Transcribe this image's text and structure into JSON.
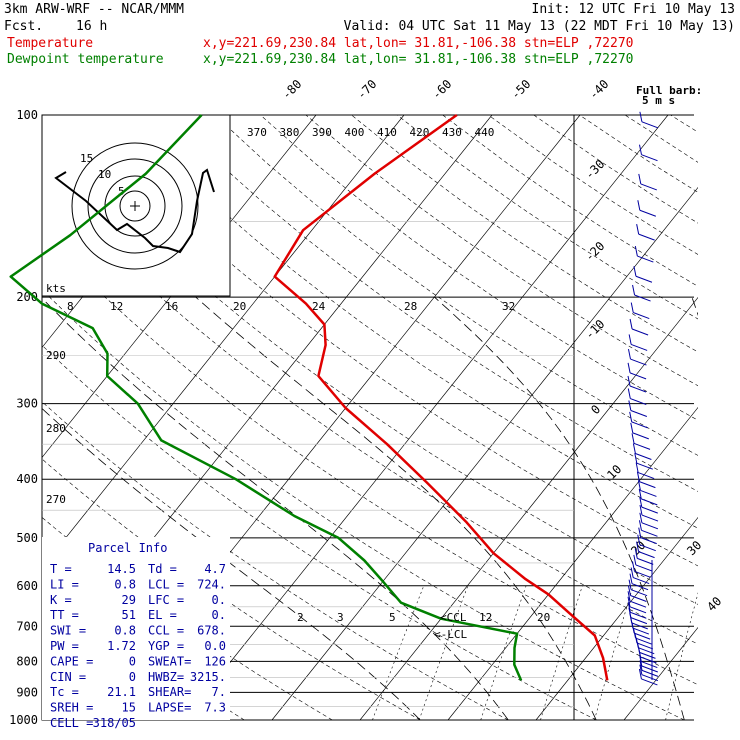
{
  "header": {
    "model": "3km ARW-WRF -- NCAR/MMM",
    "init": "Init: 12 UTC Fri 10 May 13",
    "fcst_label": "Fcst.",
    "fcst_value": "16 h",
    "valid": "Valid: 04 UTC Sat 11 May 13 (22 MDT Fri 10 May 13)"
  },
  "legend": [
    {
      "label": "Temperature",
      "info": "x,y=221.69,230.84   lat,lon= 31.81,-106.38  stn=ELP ,72270",
      "color": "#e00000"
    },
    {
      "label": "Dewpoint temperature",
      "info": "x,y=221.69,230.84   lat,lon= 31.81,-106.38  stn=ELP ,72270",
      "color": "#008000"
    }
  ],
  "barb_key": {
    "line1": "Full barb:",
    "line2": "5 m s"
  },
  "chart_data": {
    "type": "line",
    "title": "",
    "xlabel": "",
    "ylabel": "",
    "y_scale": "log-pressure (hPa, inverted)",
    "pressure_levels": [
      100,
      200,
      300,
      400,
      500,
      600,
      700,
      800,
      900,
      1000
    ],
    "isotherm_labels_top": [
      -80,
      -70,
      -60,
      -50,
      -40
    ],
    "isotherm_labels_right": [
      -30,
      -20,
      -10,
      0,
      10,
      20,
      30,
      40
    ],
    "theta_e_labels": [
      370,
      380,
      390,
      400,
      410,
      420,
      430,
      440
    ],
    "hodograph_speed_labels": [
      8,
      12,
      16,
      20,
      24,
      28,
      32
    ],
    "hodograph_units": "kts",
    "hodograph_rings": [
      "5",
      "10",
      "15"
    ],
    "dry_adiabat_labels": [
      290,
      280,
      270
    ],
    "mixing_ratio_labels": [
      2,
      3,
      5,
      12,
      20
    ],
    "ccl_label": "CCL",
    "lcl_label": "LCL",
    "series": [
      {
        "name": "Temperature",
        "color": "#e00000",
        "points": [
          [
            -54,
            100
          ],
          [
            -58,
            125
          ],
          [
            -61,
            155
          ],
          [
            -60,
            185
          ],
          [
            -54,
            205
          ],
          [
            -50,
            222
          ],
          [
            -48,
            240
          ],
          [
            -46,
            270
          ],
          [
            -40,
            305
          ],
          [
            -32,
            350
          ],
          [
            -24,
            405
          ],
          [
            -16,
            470
          ],
          [
            -10,
            530
          ],
          [
            -4,
            585
          ],
          [
            0,
            620
          ],
          [
            4,
            665
          ],
          [
            9,
            725
          ],
          [
            12,
            790
          ],
          [
            14.5,
            860
          ]
        ]
      },
      {
        "name": "Dewpoint temperature",
        "color": "#008000",
        "points": [
          [
            -83,
            100
          ],
          [
            -84,
            125
          ],
          [
            -87,
            158
          ],
          [
            -90,
            185
          ],
          [
            -84,
            205
          ],
          [
            -76,
            225
          ],
          [
            -72,
            248
          ],
          [
            -70,
            270
          ],
          [
            -64,
            300
          ],
          [
            -58,
            345
          ],
          [
            -46,
            400
          ],
          [
            -36,
            460
          ],
          [
            -29,
            500
          ],
          [
            -24,
            545
          ],
          [
            -20,
            590
          ],
          [
            -16,
            640
          ],
          [
            -10,
            680
          ],
          [
            0,
            720
          ],
          [
            1,
            760
          ],
          [
            2.5,
            810
          ],
          [
            4.7,
            860
          ]
        ]
      }
    ]
  },
  "parcel_info": {
    "title": "Parcel Info",
    "rows": [
      {
        "k1": "T  =",
        "v1": "14.5",
        "k2": "Td =",
        "v2": "4.7"
      },
      {
        "k1": "LI =",
        "v1": "0.8",
        "k2": "LCL =",
        "v2": "724."
      },
      {
        "k1": "K  =",
        "v1": "29",
        "k2": "LFC =",
        "v2": "0."
      },
      {
        "k1": "TT =",
        "v1": "51",
        "k2": "EL  =",
        "v2": "0."
      },
      {
        "k1": "SWI =",
        "v1": "0.8",
        "k2": "CCL =",
        "v2": "678."
      },
      {
        "k1": "PW =",
        "v1": "1.72",
        "k2": "YGP =",
        "v2": "0.0"
      },
      {
        "k1": "CAPE =",
        "v1": "0",
        "k2": "SWEAT=",
        "v2": "126"
      },
      {
        "k1": "CIN =",
        "v1": "0",
        "k2": "HWBZ=",
        "v2": "3215."
      },
      {
        "k1": "Tc =",
        "v1": "21.1",
        "k2": "SHEAR=",
        "v2": "7."
      },
      {
        "k1": "SREH =",
        "v1": "15",
        "k2": "LAPSE=",
        "v2": "7.3"
      },
      {
        "k1": "CELL =",
        "v1": "318/05",
        "k2": "",
        "v2": ""
      }
    ]
  }
}
